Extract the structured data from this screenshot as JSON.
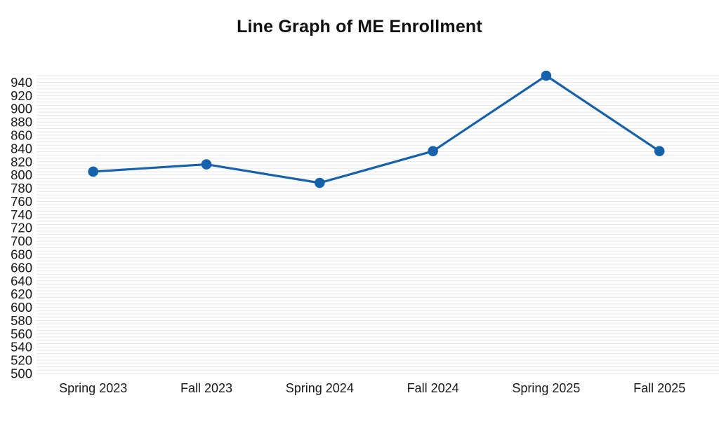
{
  "title": "Line Graph of ME Enrollment",
  "colors": {
    "line": "#1661AC",
    "marker": "#1661AC",
    "grid": "#E7E7E7",
    "text": "#1A1A1A",
    "title_text": "#111111",
    "background": "#FFFFFF"
  },
  "chart_data": {
    "type": "line",
    "title": "Line Graph of ME Enrollment",
    "categories": [
      "Spring 2023",
      "Fall 2023",
      "Spring 2024",
      "Fall 2024",
      "Spring 2025",
      "Fall 2025"
    ],
    "series": [
      {
        "name": "ME Enrollment",
        "values": [
          805,
          816,
          788,
          836,
          950,
          836
        ]
      }
    ],
    "xlabel": "",
    "ylabel": "",
    "ylim": [
      500,
      950
    ],
    "y_tick_step": 20,
    "y_ticks": [
      500,
      520,
      540,
      560,
      580,
      600,
      620,
      640,
      660,
      680,
      700,
      720,
      740,
      760,
      780,
      800,
      820,
      840,
      860,
      880,
      900,
      920,
      940
    ],
    "y_minor_gridline_step": 5,
    "grid": true,
    "gridline_orientation": "horizontal",
    "legend": "none",
    "marker": "circle",
    "line_color": "#1661AC"
  }
}
